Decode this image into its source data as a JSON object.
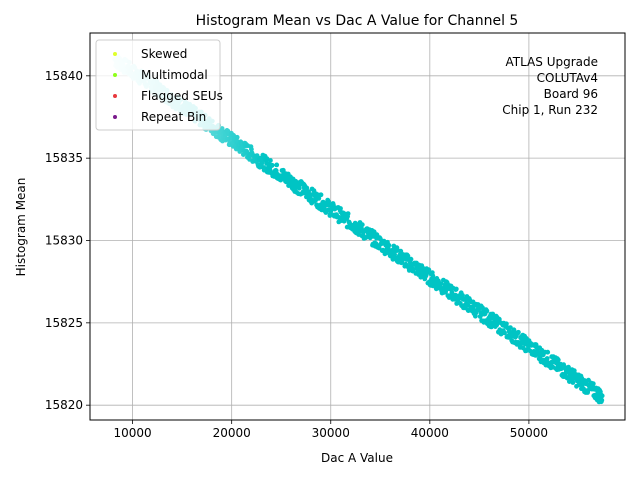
{
  "chart_data": {
    "type": "scatter",
    "title": "Histogram Mean vs Dac A Value for Channel 5",
    "xlabel": "Dac A Value",
    "ylabel": "Histogram Mean",
    "xlim": [
      5700,
      59700
    ],
    "ylim": [
      15819.1,
      15842.6
    ],
    "xticks": [
      10000,
      20000,
      30000,
      40000,
      50000
    ],
    "yticks": [
      15820,
      15825,
      15830,
      15835,
      15840
    ],
    "xtick_labels": [
      "10000",
      "20000",
      "30000",
      "40000",
      "50000"
    ],
    "ytick_labels": [
      "15820",
      "15825",
      "15830",
      "15835",
      "15840"
    ],
    "grid": true,
    "legend_position": "top-left",
    "annotation": [
      "ATLAS Upgrade",
      "COLUTAv4",
      "Board 96",
      "Chip 1, Run 232"
    ],
    "series": [
      {
        "name": "Skewed",
        "color": "#dfff2b",
        "values": []
      },
      {
        "name": "Multimodal",
        "color": "#8fff1a",
        "values": []
      },
      {
        "name": "Flagged SEUs",
        "color": "#e8383d",
        "values": []
      },
      {
        "name": "Repeat Bin",
        "color": "#7a1a8c",
        "values": []
      }
    ],
    "data_series": {
      "color_start": "#e0fbfb",
      "color_end": "#00c4c4",
      "x_range": [
        8200,
        57400
      ],
      "y_at_x_start": 15841.0,
      "y_at_x_end": 15820.5,
      "band_thickness": 0.9
    }
  }
}
